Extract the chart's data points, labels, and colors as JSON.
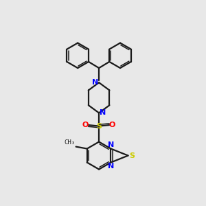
{
  "bg_color": "#e8e8e8",
  "bond_color": "#1a1a1a",
  "N_color": "#0000ff",
  "S_color": "#cccc00",
  "O_color": "#ff0000",
  "figsize": [
    3.0,
    3.0
  ],
  "dpi": 100,
  "xlim": [
    0,
    10
  ],
  "ylim": [
    0,
    10
  ]
}
